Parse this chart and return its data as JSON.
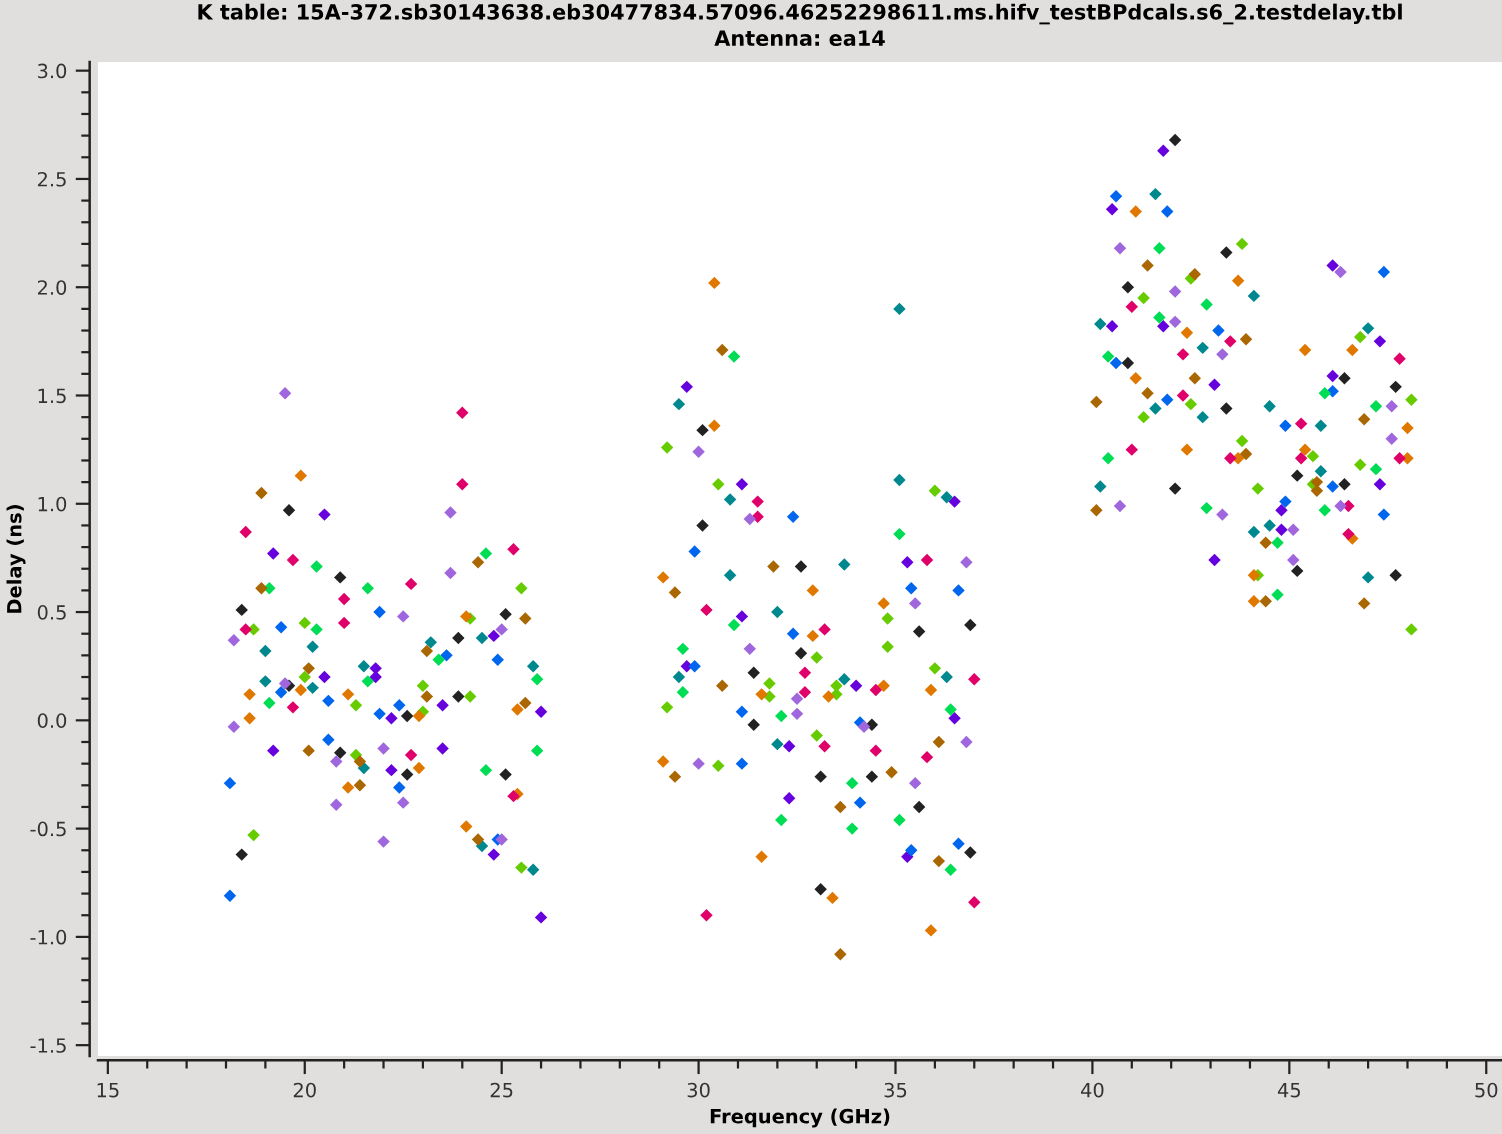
{
  "chart_data": {
    "type": "scatter",
    "title": "K table: 15A-372.sb30143638.eb30477834.57096.46252298611.ms.hifv_testBPdcals.s6_2.testdelay.tbl",
    "subtitle": "Antenna: ea14",
    "xlabel": "Frequency (GHz)",
    "ylabel": "Delay (ns)",
    "xlim": [
      14.75,
      50.4
    ],
    "ylim": [
      -1.55,
      3.04
    ],
    "xticks": [
      15,
      20,
      25,
      30,
      35,
      40,
      45,
      50
    ],
    "yticks": [
      {
        "value": -1.5,
        "label": "-1.5"
      },
      {
        "value": -1,
        "label": "-1.0"
      },
      {
        "value": -0.5,
        "label": "-0.5"
      },
      {
        "value": 0,
        "label": "0.0"
      },
      {
        "value": 0.5,
        "label": "0.5"
      },
      {
        "value": 1,
        "label": "1.0"
      },
      {
        "value": 1.5,
        "label": "1.5"
      },
      {
        "value": 2,
        "label": "2.0"
      },
      {
        "value": 2.5,
        "label": "2.5"
      },
      {
        "value": 3,
        "label": "3.0"
      }
    ],
    "marker": "diamond",
    "series": [
      {
        "color": "#222222",
        "x": [
          19.6,
          20.9,
          18.4,
          25.1,
          23.9,
          19.6,
          23.9,
          22.6,
          20.9,
          22.6,
          25.1,
          18.4,
          30.1,
          30.1,
          32.6,
          36.9,
          35.6,
          32.6,
          31.4,
          34.4,
          31.4,
          33.1,
          34.4,
          35.6,
          36.9,
          33.1,
          42.1,
          43.4,
          40.9,
          40.9,
          46.4,
          47.7,
          43.4,
          45.2,
          46.4,
          42.1,
          45.2,
          47.7
        ],
        "values": [
          0.97,
          0.66,
          0.51,
          0.49,
          0.38,
          0.16,
          0.11,
          0.02,
          -0.15,
          -0.25,
          -0.25,
          -0.62,
          1.34,
          0.9,
          0.71,
          0.44,
          0.41,
          0.31,
          0.22,
          -0.02,
          -0.02,
          -0.26,
          -0.26,
          -0.4,
          -0.61,
          -0.78,
          2.68,
          2.16,
          2.0,
          1.65,
          1.58,
          1.54,
          1.44,
          1.13,
          1.09,
          1.07,
          0.69,
          0.67
        ]
      },
      {
        "color": "#6600dd",
        "x": [
          20.5,
          19.2,
          24.8,
          21.8,
          21.8,
          20.5,
          23.5,
          22.2,
          26.0,
          19.2,
          23.5,
          22.2,
          24.8,
          26.0,
          29.7,
          31.1,
          36.5,
          35.3,
          31.1,
          29.7,
          34.0,
          36.5,
          32.3,
          32.3,
          35.3,
          41.8,
          40.5,
          46.1,
          40.5,
          41.8,
          47.3,
          46.1,
          43.1,
          47.3,
          44.8,
          44.8,
          43.1
        ],
        "values": [
          0.95,
          0.77,
          0.39,
          0.24,
          0.2,
          0.2,
          0.07,
          0.01,
          0.04,
          -0.14,
          -0.13,
          -0.23,
          -0.62,
          -0.91,
          1.54,
          1.09,
          1.01,
          0.73,
          0.48,
          0.25,
          0.16,
          0.01,
          -0.12,
          -0.36,
          -0.63,
          2.63,
          2.36,
          2.1,
          1.82,
          1.82,
          1.75,
          1.59,
          1.55,
          1.09,
          0.97,
          0.88,
          0.74
        ]
      },
      {
        "color": "#0066ee",
        "x": [
          21.9,
          19.4,
          23.6,
          24.9,
          19.4,
          20.6,
          22.4,
          21.9,
          20.6,
          18.1,
          22.4,
          24.9,
          18.1,
          32.4,
          29.9,
          35.4,
          36.6,
          32.4,
          29.9,
          31.1,
          34.1,
          31.1,
          34.1,
          36.6,
          35.4,
          40.6,
          41.9,
          47.4,
          43.2,
          40.6,
          46.1,
          41.9,
          44.9,
          46.1,
          44.9,
          47.4
        ],
        "values": [
          0.5,
          0.43,
          0.3,
          0.28,
          0.13,
          0.09,
          0.07,
          0.03,
          -0.09,
          -0.29,
          -0.31,
          -0.55,
          -0.81,
          0.94,
          0.78,
          0.61,
          0.6,
          0.4,
          0.25,
          0.04,
          -0.01,
          -0.2,
          -0.38,
          -0.57,
          -0.6,
          2.42,
          2.35,
          2.07,
          1.8,
          1.65,
          1.52,
          1.48,
          1.36,
          1.08,
          1.01,
          0.95
        ]
      },
      {
        "color": "#00888f",
        "x": [
          19.0,
          20.2,
          23.2,
          24.5,
          25.8,
          21.5,
          19.0,
          20.2,
          21.5,
          24.5,
          25.8,
          35.1,
          29.5,
          35.1,
          30.8,
          36.3,
          30.8,
          33.7,
          32.0,
          29.5,
          36.3,
          33.7,
          32.0,
          41.6,
          44.1,
          40.2,
          47.0,
          42.8,
          41.6,
          42.8,
          44.5,
          45.8,
          45.8,
          40.2,
          44.1,
          44.5,
          47.0
        ],
        "values": [
          0.32,
          0.34,
          0.36,
          0.38,
          0.25,
          0.25,
          0.18,
          0.15,
          -0.22,
          -0.58,
          -0.69,
          1.9,
          1.46,
          1.11,
          1.02,
          1.03,
          0.67,
          0.72,
          0.5,
          0.2,
          0.2,
          0.19,
          -0.11,
          2.43,
          1.96,
          1.83,
          1.81,
          1.72,
          1.44,
          1.4,
          1.45,
          1.36,
          1.15,
          1.08,
          0.87,
          0.9,
          0.66
        ]
      },
      {
        "color": "#00dd55",
        "x": [
          20.3,
          24.6,
          19.1,
          21.6,
          20.3,
          23.4,
          21.6,
          25.9,
          19.1,
          24.6,
          25.9,
          30.9,
          35.1,
          30.9,
          29.6,
          29.6,
          32.1,
          36.4,
          33.9,
          32.1,
          35.1,
          33.9,
          36.4,
          41.7,
          42.9,
          41.7,
          40.4,
          45.9,
          47.2,
          40.4,
          47.2,
          42.9,
          45.9,
          44.7,
          44.7
        ],
        "values": [
          0.71,
          0.77,
          0.61,
          0.61,
          0.42,
          0.28,
          0.18,
          0.19,
          0.08,
          -0.23,
          -0.14,
          1.68,
          0.86,
          0.44,
          0.33,
          0.13,
          0.02,
          0.05,
          -0.29,
          -0.46,
          -0.46,
          -0.5,
          -0.69,
          2.18,
          1.92,
          1.86,
          1.68,
          1.51,
          1.45,
          1.21,
          1.16,
          0.98,
          0.97,
          0.82,
          0.58
        ]
      },
      {
        "color": "#66cc00",
        "x": [
          25.5,
          24.2,
          18.7,
          20.0,
          20.0,
          23.0,
          24.2,
          21.3,
          23.0,
          21.3,
          18.7,
          25.5,
          29.2,
          30.5,
          36.0,
          34.8,
          34.8,
          33.0,
          36.0,
          31.8,
          33.5,
          33.5,
          31.8,
          29.2,
          33.0,
          30.5,
          43.8,
          42.5,
          41.3,
          46.8,
          42.5,
          41.3,
          48.1,
          43.8,
          45.6,
          46.8,
          45.6,
          44.2,
          44.2,
          48.1
        ],
        "values": [
          0.61,
          0.47,
          0.42,
          0.45,
          0.2,
          0.16,
          0.11,
          0.07,
          0.04,
          -0.16,
          -0.53,
          -0.68,
          1.26,
          1.09,
          1.06,
          0.47,
          0.34,
          0.29,
          0.24,
          0.17,
          0.16,
          0.12,
          0.11,
          0.06,
          -0.07,
          -0.21,
          2.2,
          2.04,
          1.95,
          1.77,
          1.46,
          1.4,
          1.48,
          1.29,
          1.22,
          1.18,
          1.09,
          1.07,
          0.67,
          0.42
        ]
      },
      {
        "color": "#e07800",
        "x": [
          19.9,
          24.1,
          19.9,
          18.6,
          21.1,
          22.9,
          25.4,
          18.6,
          22.9,
          21.1,
          25.4,
          24.1,
          30.4,
          30.4,
          29.1,
          32.9,
          34.7,
          32.9,
          34.7,
          35.9,
          31.6,
          33.3,
          29.1,
          31.6,
          33.4,
          35.9,
          41.1,
          43.7,
          42.4,
          45.4,
          46.6,
          41.1,
          48.0,
          42.4,
          43.7,
          45.4,
          48.0,
          46.6,
          44.1,
          44.1
        ],
        "values": [
          1.13,
          0.48,
          0.14,
          0.12,
          0.12,
          0.02,
          0.05,
          0.01,
          -0.22,
          -0.31,
          -0.34,
          -0.49,
          2.02,
          1.36,
          0.66,
          0.6,
          0.54,
          0.39,
          0.16,
          0.14,
          0.12,
          0.11,
          -0.19,
          -0.63,
          -0.82,
          -0.97,
          2.35,
          2.03,
          1.79,
          1.71,
          1.71,
          1.58,
          1.35,
          1.25,
          1.21,
          1.25,
          1.21,
          0.84,
          0.67,
          0.55
        ]
      },
      {
        "color": "#aa6600",
        "x": [
          18.9,
          24.4,
          18.9,
          25.6,
          23.1,
          20.1,
          23.1,
          25.6,
          20.1,
          21.4,
          21.4,
          24.4,
          30.6,
          29.4,
          31.9,
          30.6,
          36.1,
          34.9,
          29.4,
          33.6,
          36.1,
          33.6,
          41.4,
          42.6,
          43.9,
          42.6,
          41.4,
          40.1,
          46.9,
          43.9,
          45.7,
          45.7,
          40.1,
          44.4,
          44.4,
          46.9
        ],
        "values": [
          1.05,
          0.73,
          0.61,
          0.47,
          0.32,
          0.24,
          0.11,
          0.08,
          -0.14,
          -0.19,
          -0.3,
          -0.55,
          1.71,
          0.59,
          0.71,
          0.16,
          -0.1,
          -0.24,
          -0.26,
          -0.4,
          -0.65,
          -1.08,
          2.1,
          2.06,
          1.76,
          1.58,
          1.51,
          1.47,
          1.39,
          1.23,
          1.1,
          1.06,
          0.97,
          0.82,
          0.55,
          0.54
        ]
      },
      {
        "color": "#e0006a",
        "x": [
          24.0,
          24.0,
          18.5,
          19.7,
          25.3,
          22.7,
          21.0,
          18.5,
          21.0,
          19.7,
          22.7,
          25.3,
          31.5,
          31.5,
          35.8,
          30.2,
          33.2,
          32.7,
          37.0,
          34.5,
          32.7,
          33.2,
          34.5,
          35.8,
          37.0,
          30.2,
          41.0,
          43.5,
          42.3,
          47.8,
          42.3,
          45.3,
          41.0,
          43.5,
          45.3,
          47.8,
          46.5,
          46.5
        ],
        "values": [
          1.42,
          1.09,
          0.87,
          0.74,
          0.79,
          0.63,
          0.56,
          0.42,
          0.45,
          0.06,
          -0.16,
          -0.35,
          1.01,
          0.94,
          0.74,
          0.51,
          0.42,
          0.22,
          0.19,
          0.14,
          0.13,
          -0.12,
          -0.14,
          -0.17,
          -0.84,
          -0.9,
          1.91,
          1.75,
          1.69,
          1.67,
          1.5,
          1.37,
          1.25,
          1.21,
          1.21,
          1.21,
          0.99,
          0.86
        ]
      },
      {
        "color": "#a066dd",
        "x": [
          19.5,
          23.7,
          23.7,
          22.5,
          25.0,
          18.2,
          19.5,
          18.2,
          22.0,
          20.8,
          20.8,
          22.5,
          22.0,
          25.0,
          30.0,
          31.3,
          36.8,
          35.5,
          31.3,
          32.5,
          32.5,
          34.2,
          36.8,
          30.0,
          35.5,
          40.7,
          46.3,
          42.1,
          42.1,
          43.3,
          47.6,
          47.6,
          40.7,
          46.3,
          43.3,
          45.1,
          45.1
        ],
        "values": [
          1.51,
          0.96,
          0.68,
          0.48,
          0.42,
          0.37,
          0.17,
          -0.03,
          -0.13,
          -0.19,
          -0.39,
          -0.38,
          -0.56,
          -0.55,
          1.24,
          0.93,
          0.73,
          0.54,
          0.33,
          0.1,
          0.03,
          -0.03,
          -0.1,
          -0.2,
          -0.29,
          2.18,
          2.07,
          1.98,
          1.84,
          1.69,
          1.45,
          1.3,
          0.99,
          0.99,
          0.95,
          0.88,
          0.74
        ]
      }
    ]
  }
}
